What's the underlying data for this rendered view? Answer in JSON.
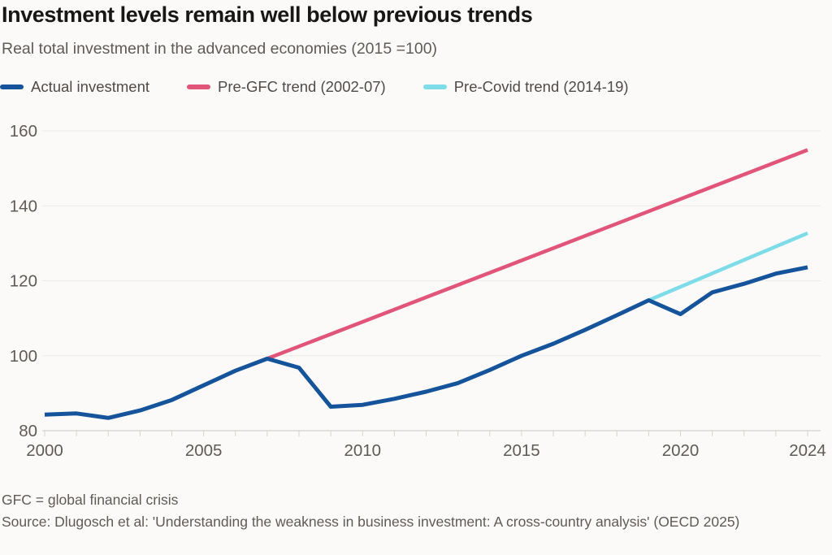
{
  "title": "Investment levels remain well below previous trends",
  "subtitle": "Real total investment in the advanced economies (2015 =100)",
  "legend": [
    {
      "label": "Actual investment",
      "color": "#15549b"
    },
    {
      "label": "Pre-GFC trend (2002-07)",
      "color": "#e2557b"
    },
    {
      "label": "Pre-Covid trend (2014-19)",
      "color": "#7edce8"
    }
  ],
  "footnote": "GFC = global financial crisis",
  "source": "Source: Dlugosch et al: 'Understanding the weakness in business investment: A cross-country analysis' (OECD 2025)",
  "colors": {
    "background": "#fbfaf9",
    "title_text": "#191715",
    "muted_text": "#5f5b57",
    "axis_line": "#c9c5c1",
    "gridline": "#eceae7",
    "tick": "#d6d3cf"
  },
  "chart_data": {
    "type": "line",
    "title": "Investment levels remain well below previous trends",
    "subtitle": "Real total investment in the advanced economies (2015 =100)",
    "xlabel": "",
    "ylabel": "",
    "xlim": [
      2000,
      2024
    ],
    "ylim": [
      80,
      165
    ],
    "xticks": [
      2000,
      2005,
      2010,
      2015,
      2020,
      2024
    ],
    "yticks": [
      80,
      100,
      120,
      140,
      160
    ],
    "grid": "horizontal-faint",
    "legend_position": "top-left",
    "series": [
      {
        "name": "Actual investment",
        "color": "#15549b",
        "x": [
          2000,
          2001,
          2002,
          2003,
          2004,
          2005,
          2006,
          2007,
          2008,
          2009,
          2010,
          2011,
          2012,
          2013,
          2014,
          2015,
          2016,
          2017,
          2018,
          2019,
          2020,
          2021,
          2022,
          2023,
          2024
        ],
        "values": [
          84.3,
          84.6,
          83.4,
          85.4,
          88.2,
          92.1,
          96.0,
          99.2,
          96.8,
          86.4,
          86.9,
          88.5,
          90.4,
          92.7,
          96.2,
          100.0,
          103.2,
          106.9,
          110.8,
          114.8,
          111.1,
          116.9,
          119.2,
          121.9,
          123.6
        ]
      },
      {
        "name": "Pre-GFC trend (2002-07)",
        "color": "#e2557b",
        "x": [
          2007,
          2024
        ],
        "values": [
          99.2,
          154.9
        ]
      },
      {
        "name": "Pre-Covid trend (2014-19)",
        "color": "#7edce8",
        "x": [
          2019,
          2024
        ],
        "values": [
          114.8,
          132.7
        ]
      }
    ]
  }
}
